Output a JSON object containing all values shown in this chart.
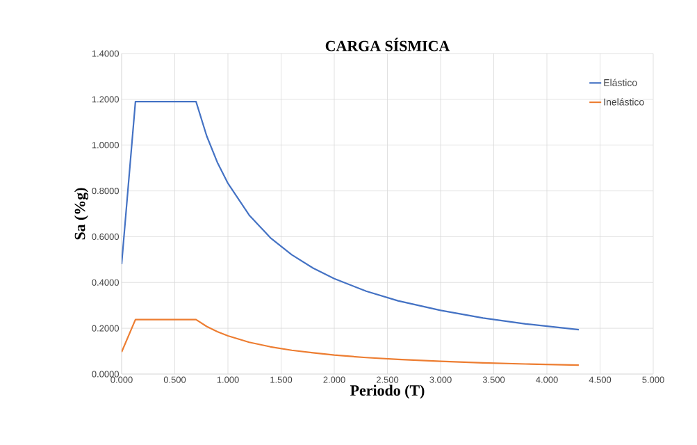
{
  "chart_data": {
    "type": "line",
    "title": "CARGA SÍSMICA",
    "xlabel": "Periodo (T)",
    "ylabel": "Sa  (%g)",
    "x": [
      0,
      0.13,
      0.7,
      0.8,
      0.9,
      1.0,
      1.2,
      1.4,
      1.6,
      1.8,
      2.0,
      2.3,
      2.6,
      3.0,
      3.4,
      3.8,
      4.3
    ],
    "series": [
      {
        "name": "Elástico",
        "color": "#4472c4",
        "values": [
          0.48,
          1.19,
          1.19,
          1.04,
          0.925,
          0.833,
          0.694,
          0.595,
          0.521,
          0.463,
          0.417,
          0.362,
          0.32,
          0.278,
          0.245,
          0.219,
          0.194
        ]
      },
      {
        "name": "Inelástico",
        "color": "#ed7d31",
        "values": [
          0.096,
          0.238,
          0.238,
          0.208,
          0.185,
          0.167,
          0.139,
          0.119,
          0.104,
          0.093,
          0.083,
          0.072,
          0.064,
          0.056,
          0.049,
          0.044,
          0.039
        ]
      }
    ],
    "xlim": [
      0,
      5
    ],
    "ylim": [
      0,
      1.4
    ],
    "xticks": [
      {
        "value": 0,
        "label": "0.000"
      },
      {
        "value": 0.5,
        "label": "0.500"
      },
      {
        "value": 1,
        "label": "1.000"
      },
      {
        "value": 1.5,
        "label": "1.500"
      },
      {
        "value": 2,
        "label": "2.000"
      },
      {
        "value": 2.5,
        "label": "2.500"
      },
      {
        "value": 3,
        "label": "3.000"
      },
      {
        "value": 3.5,
        "label": "3.500"
      },
      {
        "value": 4,
        "label": "4.000"
      },
      {
        "value": 4.5,
        "label": "4.500"
      },
      {
        "value": 5,
        "label": "5.000"
      }
    ],
    "yticks": [
      {
        "value": 0,
        "label": "0.0000"
      },
      {
        "value": 0.2,
        "label": "0.2000"
      },
      {
        "value": 0.4,
        "label": "0.4000"
      },
      {
        "value": 0.6,
        "label": "0.6000"
      },
      {
        "value": 0.8,
        "label": "0.8000"
      },
      {
        "value": 1.0,
        "label": "1.0000"
      },
      {
        "value": 1.2,
        "label": "1.2000"
      },
      {
        "value": 1.4,
        "label": "1.4000"
      }
    ],
    "grid": true,
    "legend": "top right",
    "marker": "none",
    "line_style": "solid"
  }
}
